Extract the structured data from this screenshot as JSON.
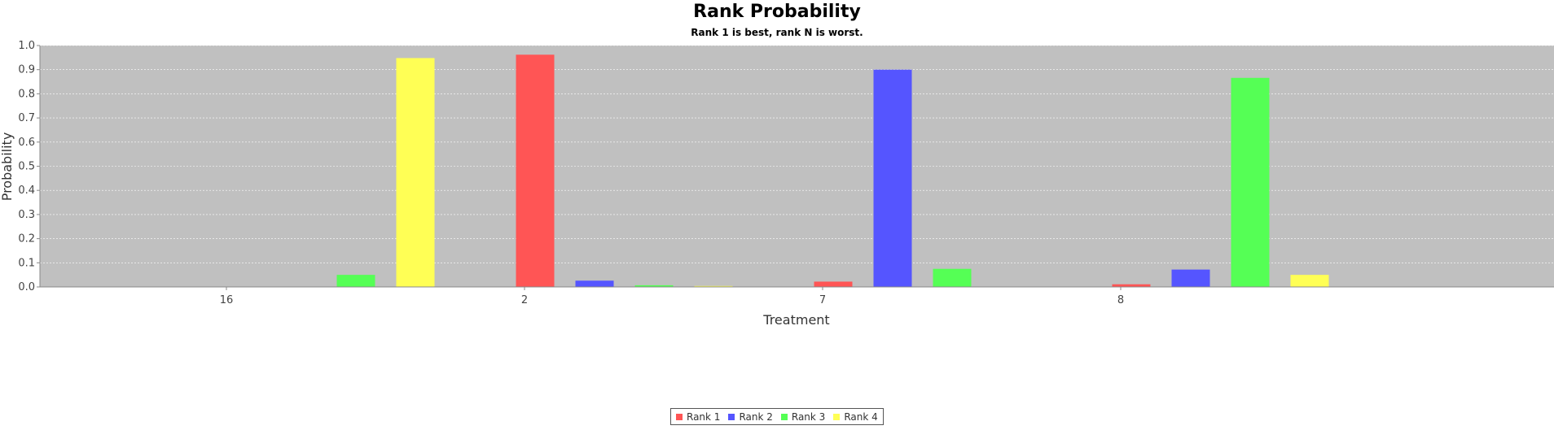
{
  "chart_data": {
    "type": "bar",
    "title": "Rank Probability",
    "subtitle": "Rank 1 is best, rank N is worst.",
    "xlabel": "Treatment",
    "ylabel": "Probability",
    "categories": [
      "16",
      "2",
      "7",
      "8"
    ],
    "ylim": [
      0.0,
      1.0
    ],
    "yticks": [
      "0.0",
      "0.1",
      "0.2",
      "0.3",
      "0.4",
      "0.5",
      "0.6",
      "0.7",
      "0.8",
      "0.9",
      "1.0"
    ],
    "grid": true,
    "legend_position": "bottom-center",
    "background_color": "#c0c0c0",
    "series": [
      {
        "name": "Rank 1",
        "color": "#ff5555",
        "values": [
          0.0,
          0.962,
          0.022,
          0.011
        ]
      },
      {
        "name": "Rank 2",
        "color": "#5555ff",
        "values": [
          0.0,
          0.026,
          0.9,
          0.072
        ]
      },
      {
        "name": "Rank 3",
        "color": "#55ff55",
        "values": [
          0.05,
          0.007,
          0.075,
          0.866
        ]
      },
      {
        "name": "Rank 4",
        "color": "#ffff55",
        "values": [
          0.948,
          0.004,
          0.0,
          0.05
        ]
      }
    ]
  }
}
